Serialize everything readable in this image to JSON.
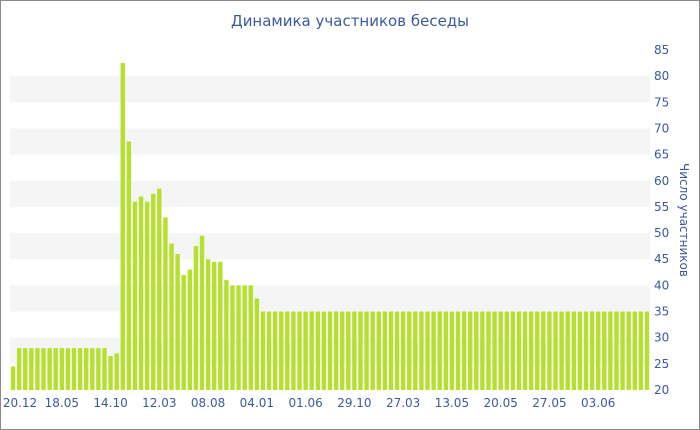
{
  "chart_data": {
    "type": "bar",
    "title": "Динамика участников беседы",
    "xlabel": "",
    "ylabel": "Число участников",
    "ylim": [
      20,
      85
    ],
    "yticks": [
      20,
      25,
      30,
      35,
      40,
      45,
      50,
      55,
      60,
      65,
      70,
      75,
      80,
      85
    ],
    "xtick_labels": [
      "20.12",
      "18.05",
      "14.10",
      "12.03",
      "08.08",
      "04.01",
      "01.06",
      "29.10",
      "27.03",
      "13.05",
      "20.05",
      "27.05",
      "03.06"
    ],
    "xtick_positions": [
      0,
      8,
      16,
      24,
      32,
      40,
      48,
      56,
      64,
      72,
      80,
      88,
      96
    ],
    "grid": "alternating horizontal bands",
    "legend": "none",
    "bar_color": "#b5e02e",
    "band_color": "#f5f5f5",
    "text_color": "#3b5a9a",
    "values": [
      24.5,
      28,
      28,
      28,
      28,
      28,
      28,
      28,
      28,
      28,
      28,
      28,
      28,
      28,
      28,
      28,
      26.5,
      27,
      82.5,
      67.5,
      56,
      57,
      56,
      57.5,
      58.5,
      53,
      48,
      46,
      42,
      43,
      47.5,
      49.5,
      45,
      44.5,
      44.5,
      41,
      40,
      40,
      40,
      40,
      37.5,
      35,
      35,
      35,
      35,
      35,
      35,
      35,
      35,
      35,
      35,
      35,
      35,
      35,
      35,
      35,
      35,
      35,
      35,
      35,
      35,
      35,
      35,
      35,
      35,
      35,
      35,
      35,
      35,
      35,
      35,
      35,
      35,
      35,
      35,
      35,
      35,
      35,
      35,
      35,
      35,
      35,
      35,
      35,
      35,
      35,
      35,
      35,
      35,
      35,
      35,
      35,
      35,
      35,
      35,
      35,
      35,
      35,
      35,
      35,
      35,
      35,
      35,
      35,
      35
    ]
  }
}
